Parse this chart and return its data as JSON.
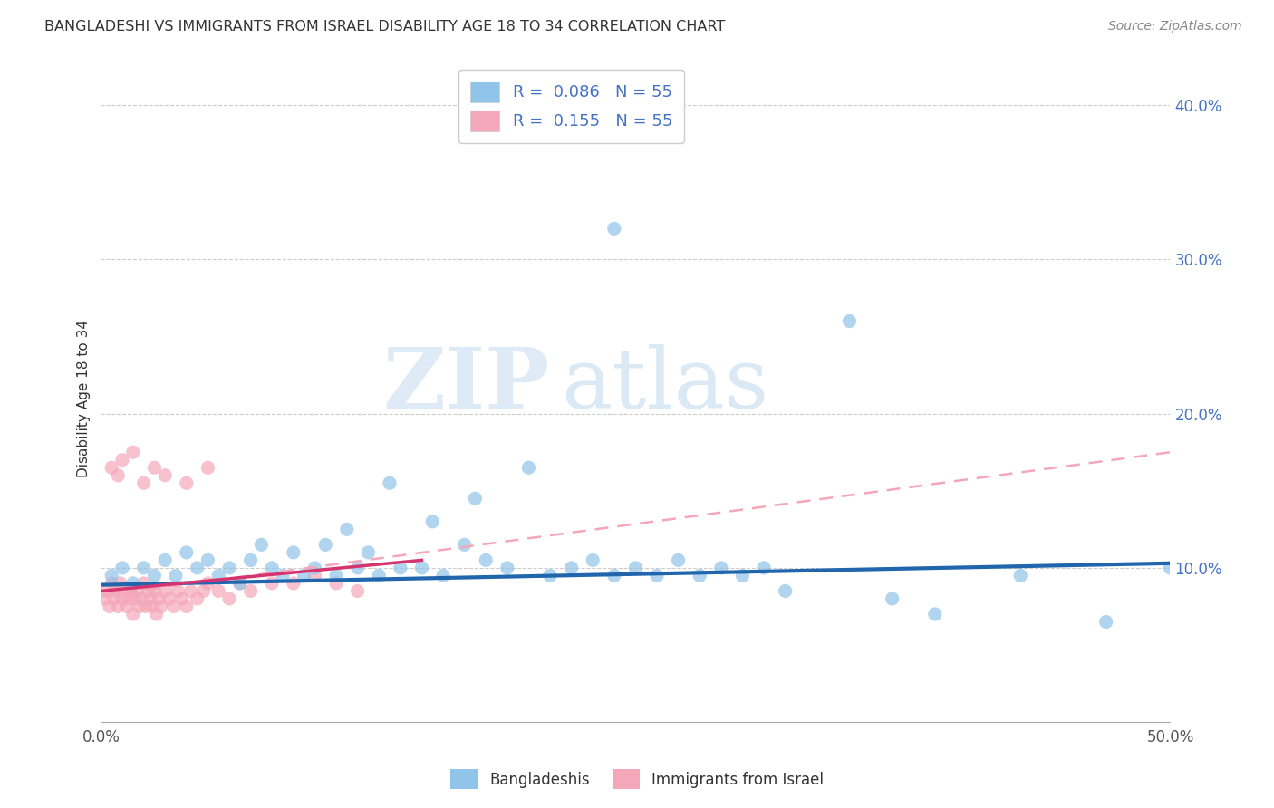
{
  "title": "BANGLADESHI VS IMMIGRANTS FROM ISRAEL DISABILITY AGE 18 TO 34 CORRELATION CHART",
  "source": "Source: ZipAtlas.com",
  "ylabel": "Disability Age 18 to 34",
  "xlim": [
    0.0,
    0.5
  ],
  "ylim": [
    0.0,
    0.42
  ],
  "xticks": [
    0.0,
    0.1,
    0.2,
    0.3,
    0.4,
    0.5
  ],
  "xticklabels": [
    "0.0%",
    "",
    "",
    "",
    "",
    "50.0%"
  ],
  "yticks_right": [
    0.1,
    0.2,
    0.3,
    0.4
  ],
  "yticklabels_right": [
    "10.0%",
    "20.0%",
    "30.0%",
    "40.0%"
  ],
  "blue_color": "#90c4e8",
  "pink_color": "#f4a7b9",
  "blue_line_color": "#2166ac",
  "pink_line_color": "#d63470",
  "legend_blue_label": "R =  0.086   N = 55",
  "legend_pink_label": "R =  0.155   N = 55",
  "watermark_zip": "ZIP",
  "watermark_atlas": "atlas",
  "blue_scatter_x": [
    0.005,
    0.01,
    0.015,
    0.02,
    0.025,
    0.03,
    0.035,
    0.04,
    0.045,
    0.05,
    0.055,
    0.06,
    0.065,
    0.07,
    0.075,
    0.08,
    0.085,
    0.09,
    0.095,
    0.1,
    0.105,
    0.11,
    0.115,
    0.12,
    0.125,
    0.13,
    0.135,
    0.14,
    0.15,
    0.155,
    0.16,
    0.17,
    0.175,
    0.18,
    0.19,
    0.2,
    0.21,
    0.22,
    0.23,
    0.24,
    0.25,
    0.26,
    0.27,
    0.28,
    0.29,
    0.3,
    0.31,
    0.32,
    0.35,
    0.37,
    0.39,
    0.24,
    0.43,
    0.47,
    0.5
  ],
  "blue_scatter_y": [
    0.095,
    0.1,
    0.09,
    0.1,
    0.095,
    0.105,
    0.095,
    0.11,
    0.1,
    0.105,
    0.095,
    0.1,
    0.09,
    0.105,
    0.115,
    0.1,
    0.095,
    0.11,
    0.095,
    0.1,
    0.115,
    0.095,
    0.125,
    0.1,
    0.11,
    0.095,
    0.155,
    0.1,
    0.1,
    0.13,
    0.095,
    0.115,
    0.145,
    0.105,
    0.1,
    0.165,
    0.095,
    0.1,
    0.105,
    0.095,
    0.1,
    0.095,
    0.105,
    0.095,
    0.1,
    0.095,
    0.1,
    0.085,
    0.26,
    0.08,
    0.07,
    0.32,
    0.095,
    0.065,
    0.1
  ],
  "pink_scatter_x": [
    0.002,
    0.003,
    0.004,
    0.005,
    0.006,
    0.007,
    0.008,
    0.009,
    0.01,
    0.011,
    0.012,
    0.013,
    0.014,
    0.015,
    0.016,
    0.017,
    0.018,
    0.019,
    0.02,
    0.021,
    0.022,
    0.023,
    0.024,
    0.025,
    0.026,
    0.027,
    0.028,
    0.03,
    0.032,
    0.034,
    0.036,
    0.038,
    0.04,
    0.042,
    0.045,
    0.048,
    0.05,
    0.055,
    0.06,
    0.065,
    0.07,
    0.08,
    0.09,
    0.1,
    0.11,
    0.12,
    0.005,
    0.008,
    0.01,
    0.015,
    0.02,
    0.025,
    0.03,
    0.04,
    0.05
  ],
  "pink_scatter_y": [
    0.08,
    0.085,
    0.075,
    0.09,
    0.08,
    0.085,
    0.075,
    0.09,
    0.08,
    0.085,
    0.075,
    0.08,
    0.085,
    0.07,
    0.08,
    0.085,
    0.075,
    0.08,
    0.09,
    0.075,
    0.085,
    0.08,
    0.075,
    0.085,
    0.07,
    0.08,
    0.075,
    0.085,
    0.08,
    0.075,
    0.085,
    0.08,
    0.075,
    0.085,
    0.08,
    0.085,
    0.09,
    0.085,
    0.08,
    0.09,
    0.085,
    0.09,
    0.09,
    0.095,
    0.09,
    0.085,
    0.165,
    0.16,
    0.17,
    0.175,
    0.155,
    0.165,
    0.16,
    0.155,
    0.165
  ]
}
